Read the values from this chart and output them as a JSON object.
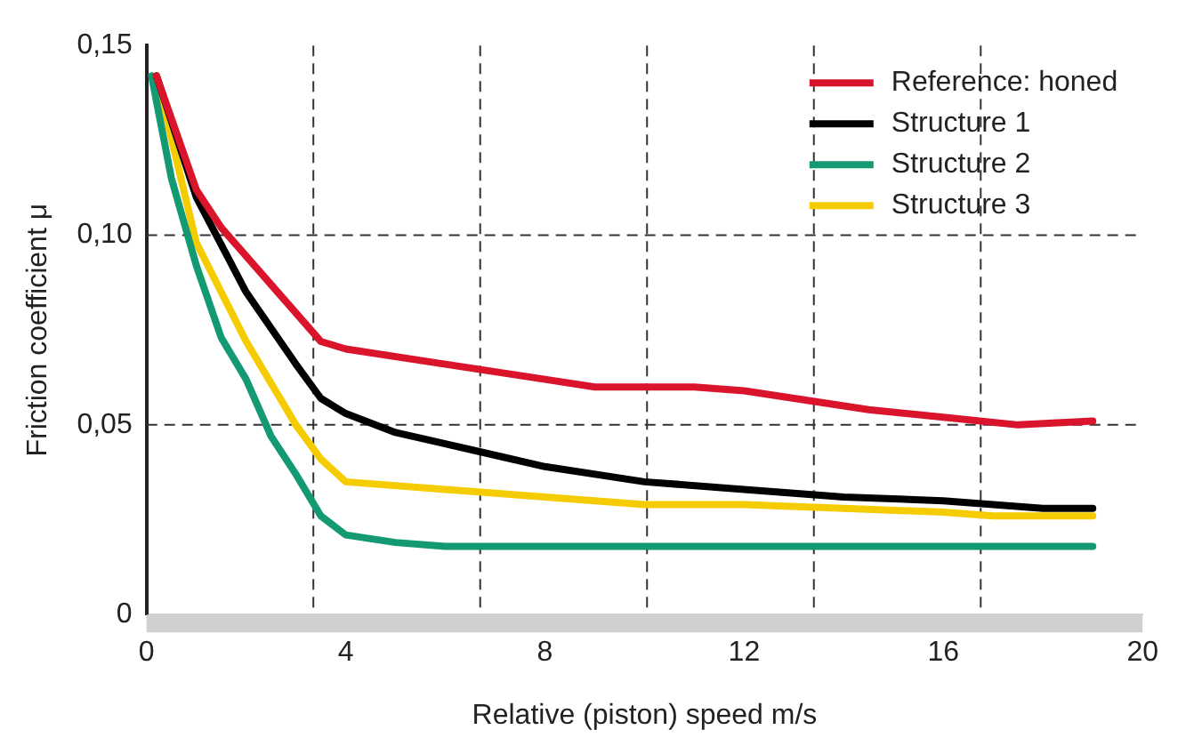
{
  "chart_data": {
    "type": "line",
    "xlabel": "Relative (piston) speed m/s",
    "ylabel": "Friction coefficient μ",
    "xlim": [
      0,
      20
    ],
    "xticks": [
      0,
      4,
      8,
      12,
      16,
      20
    ],
    "ylim": [
      0,
      0.15
    ],
    "yticks": [
      {
        "value": 0,
        "label": "0"
      },
      {
        "value": 0.05,
        "label": "0,05"
      },
      {
        "value": 0.1,
        "label": "0,10"
      },
      {
        "value": 0.15,
        "label": "0,15"
      }
    ],
    "grid": false,
    "legend": "top right",
    "marker": "none",
    "line_style": "solid",
    "ref_lines": [
      {
        "axis": "y",
        "value": 0.05,
        "color": "#333333",
        "line_style": "dashed"
      },
      {
        "axis": "y",
        "value": 0.1,
        "color": "#333333",
        "line_style": "dashed"
      },
      {
        "axis": "x",
        "value": 3.35,
        "color": "#333333",
        "line_style": "dashed"
      },
      {
        "axis": "x",
        "value": 6.7,
        "color": "#333333",
        "line_style": "dashed"
      },
      {
        "axis": "x",
        "value": 10.05,
        "color": "#333333",
        "line_style": "dashed"
      },
      {
        "axis": "x",
        "value": 13.4,
        "color": "#333333",
        "line_style": "dashed"
      },
      {
        "axis": "x",
        "value": 16.75,
        "color": "#333333",
        "line_style": "dashed"
      }
    ],
    "series": [
      {
        "name": "Reference: honed",
        "color": "#d9142b",
        "x": [
          0.2,
          1,
          1.5,
          2.5,
          3.5,
          4,
          6,
          8,
          9,
          11,
          12,
          13,
          14.5,
          16,
          17.5,
          19
        ],
        "values": [
          0.142,
          0.112,
          0.102,
          0.087,
          0.072,
          0.07,
          0.066,
          0.062,
          0.06,
          0.06,
          0.059,
          0.057,
          0.054,
          0.052,
          0.05,
          0.051
        ]
      },
      {
        "name": "Structure 1",
        "color": "#000000",
        "x": [
          0.2,
          1,
          2,
          3,
          3.5,
          4,
          5,
          6,
          7,
          8,
          10,
          12,
          14,
          16,
          18,
          19
        ],
        "values": [
          0.142,
          0.11,
          0.085,
          0.066,
          0.057,
          0.053,
          0.048,
          0.045,
          0.042,
          0.039,
          0.035,
          0.033,
          0.031,
          0.03,
          0.028,
          0.028
        ]
      },
      {
        "name": "Structure 2",
        "color": "#139a72",
        "x": [
          0.1,
          0.5,
          1,
          1.5,
          2,
          2.5,
          3,
          3.5,
          4,
          5,
          6,
          8,
          12,
          16,
          19
        ],
        "values": [
          0.142,
          0.115,
          0.092,
          0.073,
          0.062,
          0.047,
          0.037,
          0.026,
          0.021,
          0.019,
          0.018,
          0.018,
          0.018,
          0.018,
          0.018
        ]
      },
      {
        "name": "Structure 3",
        "color": "#f5cc00",
        "x": [
          0.2,
          1,
          2,
          3,
          3.5,
          4,
          6,
          8,
          10,
          12,
          14,
          16,
          17,
          19
        ],
        "values": [
          0.142,
          0.098,
          0.072,
          0.05,
          0.041,
          0.035,
          0.033,
          0.031,
          0.029,
          0.029,
          0.028,
          0.027,
          0.026,
          0.026
        ]
      }
    ]
  }
}
